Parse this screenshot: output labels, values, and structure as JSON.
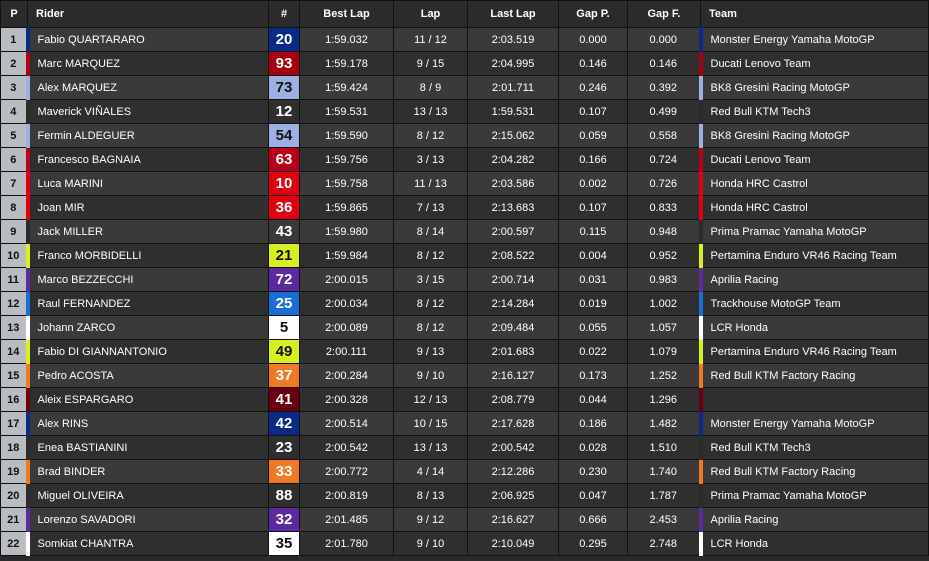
{
  "headers": {
    "p": "P",
    "rider": "Rider",
    "num": "#",
    "best": "Best Lap",
    "lap": "Lap",
    "last": "Last Lap",
    "gapp": "Gap P.",
    "gapf": "Gap F.",
    "team": "Team"
  },
  "rows": [
    {
      "p": "1",
      "rider": "Fabio QUARTARARO",
      "num": "20",
      "best": "1:59.032",
      "lap": "11 / 12",
      "last": "2:03.519",
      "gapp": "0.000",
      "gapf": "0.000",
      "team": "Monster Energy Yamaha MotoGP",
      "color": "#0b2a86",
      "dark": false
    },
    {
      "p": "2",
      "rider": "Marc MARQUEZ",
      "num": "93",
      "best": "1:59.178",
      "lap": "9 / 15",
      "last": "2:04.995",
      "gapp": "0.146",
      "gapf": "0.146",
      "team": "Ducati Lenovo Team",
      "color": "#a8000e",
      "dark": false
    },
    {
      "p": "3",
      "rider": "Alex MARQUEZ",
      "num": "73",
      "best": "1:59.424",
      "lap": "8 / 9",
      "last": "2:01.711",
      "gapp": "0.246",
      "gapf": "0.392",
      "team": "BK8 Gresini Racing MotoGP",
      "color": "#9db0e2",
      "dark": true
    },
    {
      "p": "4",
      "rider": "Maverick VIÑALES",
      "num": "12",
      "best": "1:59.531",
      "lap": "13 / 13",
      "last": "1:59.531",
      "gapp": "0.107",
      "gapf": "0.499",
      "team": "Red Bull KTM Tech3",
      "color": "#2b2b2b",
      "dark": false
    },
    {
      "p": "5",
      "rider": "Fermin ALDEGUER",
      "num": "54",
      "best": "1:59.590",
      "lap": "8 / 12",
      "last": "2:15.062",
      "gapp": "0.059",
      "gapf": "0.558",
      "team": "BK8 Gresini Racing MotoGP",
      "color": "#9db0e2",
      "dark": true
    },
    {
      "p": "6",
      "rider": "Francesco BAGNAIA",
      "num": "63",
      "best": "1:59.756",
      "lap": "3 / 13",
      "last": "2:04.282",
      "gapp": "0.166",
      "gapf": "0.724",
      "team": "Ducati Lenovo Team",
      "color": "#b8001a",
      "dark": false
    },
    {
      "p": "7",
      "rider": "Luca MARINI",
      "num": "10",
      "best": "1:59.758",
      "lap": "11 / 13",
      "last": "2:03.586",
      "gapp": "0.002",
      "gapf": "0.726",
      "team": "Honda HRC Castrol",
      "color": "#e0000e",
      "dark": false
    },
    {
      "p": "8",
      "rider": "Joan MIR",
      "num": "36",
      "best": "1:59.865",
      "lap": "7 / 13",
      "last": "2:13.683",
      "gapp": "0.107",
      "gapf": "0.833",
      "team": "Honda HRC Castrol",
      "color": "#e0000e",
      "dark": false
    },
    {
      "p": "9",
      "rider": "Jack MILLER",
      "num": "43",
      "best": "1:59.980",
      "lap": "8 / 14",
      "last": "2:00.597",
      "gapp": "0.115",
      "gapf": "0.948",
      "team": "Prima Pramac Yamaha MotoGP",
      "color": "#2b2b2b",
      "dark": false
    },
    {
      "p": "10",
      "rider": "Franco MORBIDELLI",
      "num": "21",
      "best": "1:59.984",
      "lap": "8 / 12",
      "last": "2:08.522",
      "gapp": "0.004",
      "gapf": "0.952",
      "team": "Pertamina Enduro VR46 Racing Team",
      "color": "#d8f020",
      "dark": true
    },
    {
      "p": "11",
      "rider": "Marco BEZZECCHI",
      "num": "72",
      "best": "2:00.015",
      "lap": "3 / 15",
      "last": "2:00.714",
      "gapp": "0.031",
      "gapf": "0.983",
      "team": "Aprilia Racing",
      "color": "#5b2a9c",
      "dark": false
    },
    {
      "p": "12",
      "rider": "Raul FERNANDEZ",
      "num": "25",
      "best": "2:00.034",
      "lap": "8 / 12",
      "last": "2:14.284",
      "gapp": "0.019",
      "gapf": "1.002",
      "team": "Trackhouse MotoGP Team",
      "color": "#1a6fd6",
      "dark": false
    },
    {
      "p": "13",
      "rider": "Johann ZARCO",
      "num": "5",
      "best": "2:00.089",
      "lap": "8 / 12",
      "last": "2:09.484",
      "gapp": "0.055",
      "gapf": "1.057",
      "team": "LCR Honda",
      "color": "#ffffff",
      "dark": true
    },
    {
      "p": "14",
      "rider": "Fabio DI GIANNANTONIO",
      "num": "49",
      "best": "2:00.111",
      "lap": "9 / 13",
      "last": "2:01.683",
      "gapp": "0.022",
      "gapf": "1.079",
      "team": "Pertamina Enduro VR46 Racing Team",
      "color": "#d8f020",
      "dark": true
    },
    {
      "p": "15",
      "rider": "Pedro ACOSTA",
      "num": "37",
      "best": "2:00.284",
      "lap": "9 / 10",
      "last": "2:16.127",
      "gapp": "0.173",
      "gapf": "1.252",
      "team": "Red Bull KTM Factory Racing",
      "color": "#f07a22",
      "dark": false
    },
    {
      "p": "16",
      "rider": "Aleix ESPARGARO",
      "num": "41",
      "best": "2:00.328",
      "lap": "12 / 13",
      "last": "2:08.779",
      "gapp": "0.044",
      "gapf": "1.296",
      "team": "",
      "color": "#6a0010",
      "dark": false
    },
    {
      "p": "17",
      "rider": "Alex RINS",
      "num": "42",
      "best": "2:00.514",
      "lap": "10 / 15",
      "last": "2:17.628",
      "gapp": "0.186",
      "gapf": "1.482",
      "team": "Monster Energy Yamaha MotoGP",
      "color": "#0b2a86",
      "dark": false
    },
    {
      "p": "18",
      "rider": "Enea BASTIANINI",
      "num": "23",
      "best": "2:00.542",
      "lap": "13 / 13",
      "last": "2:00.542",
      "gapp": "0.028",
      "gapf": "1.510",
      "team": "Red Bull KTM Tech3",
      "color": "#2b2b2b",
      "dark": false
    },
    {
      "p": "19",
      "rider": "Brad BINDER",
      "num": "33",
      "best": "2:00.772",
      "lap": "4 / 14",
      "last": "2:12.286",
      "gapp": "0.230",
      "gapf": "1.740",
      "team": "Red Bull KTM Factory Racing",
      "color": "#f07a22",
      "dark": false
    },
    {
      "p": "20",
      "rider": "Miguel OLIVEIRA",
      "num": "88",
      "best": "2:00.819",
      "lap": "8 / 13",
      "last": "2:06.925",
      "gapp": "0.047",
      "gapf": "1.787",
      "team": "Prima Pramac Yamaha MotoGP",
      "color": "#2b2b2b",
      "dark": false
    },
    {
      "p": "21",
      "rider": "Lorenzo SAVADORI",
      "num": "32",
      "best": "2:01.485",
      "lap": "9 / 12",
      "last": "2:16.627",
      "gapp": "0.666",
      "gapf": "2.453",
      "team": "Aprilia Racing",
      "color": "#5b2a9c",
      "dark": false
    },
    {
      "p": "22",
      "rider": "Somkiat CHANTRA",
      "num": "35",
      "best": "2:01.780",
      "lap": "9 / 10",
      "last": "2:10.049",
      "gapp": "0.295",
      "gapf": "2.748",
      "team": "LCR Honda",
      "color": "#ffffff",
      "dark": true
    }
  ]
}
